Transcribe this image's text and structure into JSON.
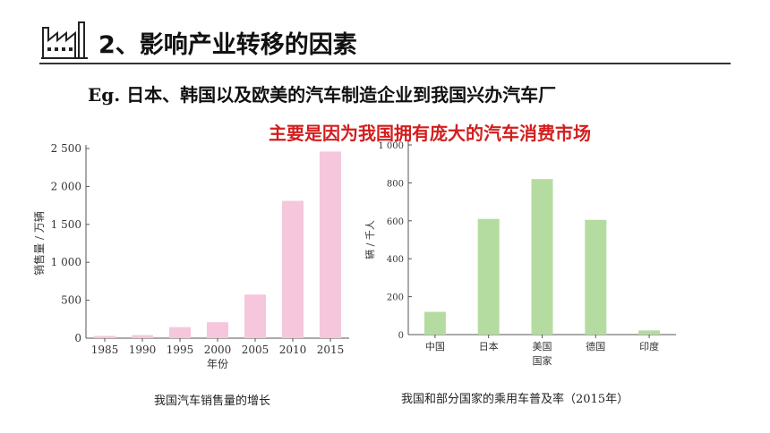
{
  "header": {
    "title": "2、影响产业转移的因素",
    "icon": "factory-icon"
  },
  "example": "Eg. 日本、韩国以及欧美的汽车制造企业到我国兴办汽车厂",
  "highlight": "主要是因为我国拥有庞大的汽车消费市场",
  "colors": {
    "highlight": "#d21e1e",
    "bar_pink": "#f5c6dc",
    "bar_green": "#b5dca0"
  },
  "captions": {
    "left": "我国汽车销售量的增长",
    "right": "我国和部分国家的乘用车普及率（2015年）"
  },
  "chart_data": [
    {
      "type": "bar",
      "categories": [
        "1985",
        "1990",
        "1995",
        "2000",
        "2005",
        "2010",
        "2015"
      ],
      "values": [
        30,
        40,
        145,
        210,
        575,
        1810,
        2460
      ],
      "xlabel": "年份",
      "ylabel": "销售量 / 万辆",
      "ylim": [
        0,
        2500
      ],
      "yticks": [
        "0",
        "500",
        "1 000",
        "1 500",
        "2 000",
        "2 500"
      ],
      "grid": false
    },
    {
      "type": "bar",
      "categories": [
        "中国",
        "日本",
        "美国",
        "德国",
        "印度"
      ],
      "values": [
        120,
        610,
        820,
        605,
        22
      ],
      "xlabel": "国家",
      "ylabel": "辆 / 千人",
      "ylim": [
        0,
        1000
      ],
      "yticks": [
        "0",
        "200",
        "400",
        "600",
        "800",
        "1 000"
      ],
      "grid": false
    }
  ]
}
